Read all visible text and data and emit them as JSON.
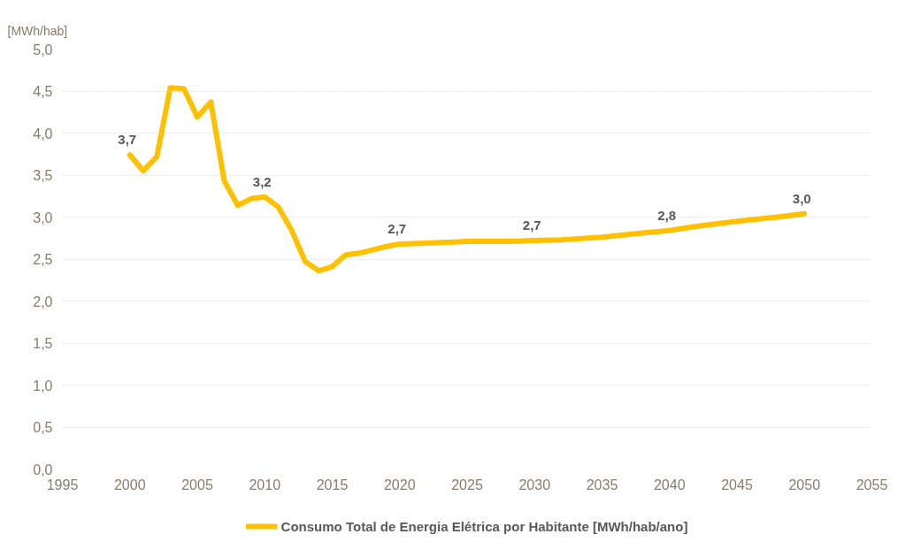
{
  "chart_data": {
    "type": "line",
    "ylabel": "[MWh/hab]",
    "x": [
      2000,
      2001,
      2002,
      2003,
      2004,
      2005,
      2006,
      2007,
      2008,
      2009,
      2010,
      2011,
      2012,
      2013,
      2014,
      2015,
      2016,
      2017,
      2018,
      2019,
      2020,
      2022,
      2025,
      2028,
      2030,
      2032,
      2035,
      2038,
      2040,
      2042,
      2045,
      2048,
      2050
    ],
    "series": [
      {
        "name": "Consumo Total de Energia Elétrica por Habitante [MWh/hab/ano]",
        "color": "#ffc000",
        "values": [
          3.74,
          3.55,
          3.72,
          4.54,
          4.53,
          4.19,
          4.37,
          3.43,
          3.14,
          3.22,
          3.24,
          3.12,
          2.84,
          2.47,
          2.36,
          2.41,
          2.55,
          2.57,
          2.61,
          2.65,
          2.68,
          2.69,
          2.71,
          2.71,
          2.72,
          2.73,
          2.76,
          2.81,
          2.84,
          2.89,
          2.95,
          3.0,
          3.04
        ],
        "value_labels": [
          "3,7",
          null,
          null,
          null,
          null,
          null,
          null,
          null,
          null,
          null,
          "3,2",
          null,
          null,
          null,
          null,
          null,
          null,
          null,
          null,
          null,
          "2,7",
          null,
          null,
          null,
          "2,7",
          null,
          null,
          null,
          "2,8",
          null,
          null,
          null,
          "3,0"
        ]
      }
    ],
    "xlim": [
      1995,
      2055
    ],
    "xticks": [
      1995,
      2000,
      2005,
      2010,
      2015,
      2020,
      2025,
      2030,
      2035,
      2040,
      2045,
      2050,
      2055
    ],
    "ylim": [
      0,
      5
    ],
    "yticks": [
      {
        "value": 0,
        "label": "0,0"
      },
      {
        "value": 0.5,
        "label": "0,5"
      },
      {
        "value": 1,
        "label": "1,0"
      },
      {
        "value": 1.5,
        "label": "1,5"
      },
      {
        "value": 2,
        "label": "2,0"
      },
      {
        "value": 2.5,
        "label": "2,5"
      },
      {
        "value": 3,
        "label": "3,0"
      },
      {
        "value": 3.5,
        "label": "3,5"
      },
      {
        "value": 4,
        "label": "4,0"
      },
      {
        "value": 4.5,
        "label": "4,5"
      },
      {
        "value": 5,
        "label": "5,0"
      }
    ],
    "grid": "y",
    "legend": "bottom",
    "marker": "none",
    "line_style": "solid"
  }
}
